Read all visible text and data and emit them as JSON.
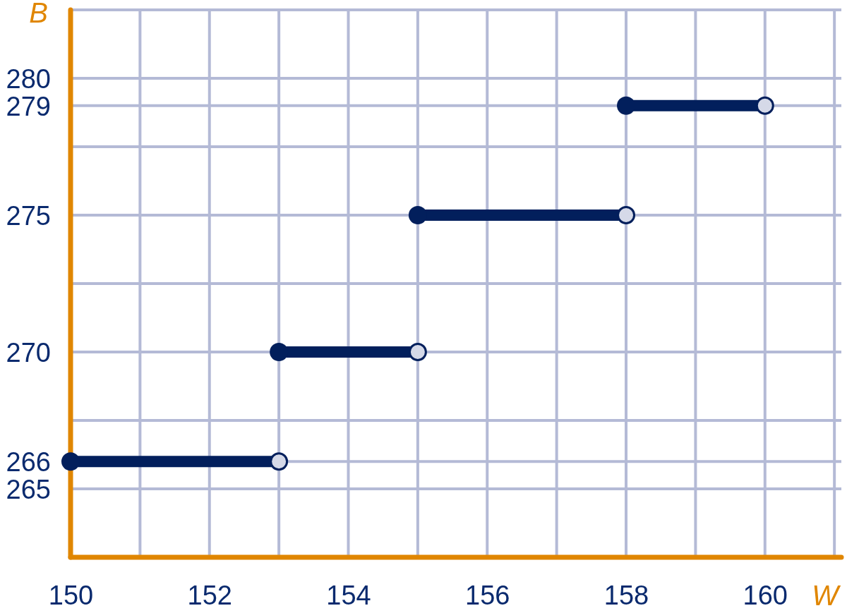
{
  "chart_data": {
    "type": "line",
    "xlabel": "W",
    "ylabel": "B",
    "xlim": [
      150,
      161.1
    ],
    "xticks": [
      150,
      {
        "value": 151,
        "label": null
      },
      152,
      {
        "value": 153,
        "label": null
      },
      154,
      {
        "value": 155,
        "label": null
      },
      156,
      {
        "value": 157,
        "label": null
      },
      158,
      {
        "value": 159,
        "label": null
      },
      160,
      {
        "value": 161,
        "label": null
      }
    ],
    "ylim": [
      262.5,
      282.5
    ],
    "yticks": [
      265,
      266,
      {
        "value": 267.5,
        "label": null
      },
      270,
      {
        "value": 272.5,
        "label": null
      },
      275,
      {
        "value": 277.5,
        "label": null
      },
      279,
      280,
      {
        "value": 282.5,
        "label": null
      }
    ],
    "grid": true,
    "series": [
      {
        "color": "#021f5c",
        "marker": "none",
        "x": [
          150,
          153
        ],
        "values": [
          266,
          266
        ]
      },
      {
        "color": "#021f5c",
        "marker": "none",
        "x": [
          153,
          155
        ],
        "values": [
          270,
          270
        ]
      },
      {
        "color": "#021f5c",
        "marker": "none",
        "x": [
          155,
          158
        ],
        "values": [
          275,
          275
        ]
      },
      {
        "color": "#021f5c",
        "marker": "none",
        "x": [
          158,
          160
        ],
        "values": [
          279,
          279
        ]
      },
      {
        "type": "scatter",
        "color": "#021f5c",
        "marker": "circle",
        "x": [
          150,
          153,
          155,
          158
        ],
        "values": [
          266,
          270,
          275,
          279
        ]
      },
      {
        "type": "scatter",
        "color": "#d5d9e8",
        "marker": "circle",
        "x": [
          153,
          155,
          158,
          160
        ],
        "values": [
          266,
          270,
          275,
          279
        ]
      }
    ]
  }
}
